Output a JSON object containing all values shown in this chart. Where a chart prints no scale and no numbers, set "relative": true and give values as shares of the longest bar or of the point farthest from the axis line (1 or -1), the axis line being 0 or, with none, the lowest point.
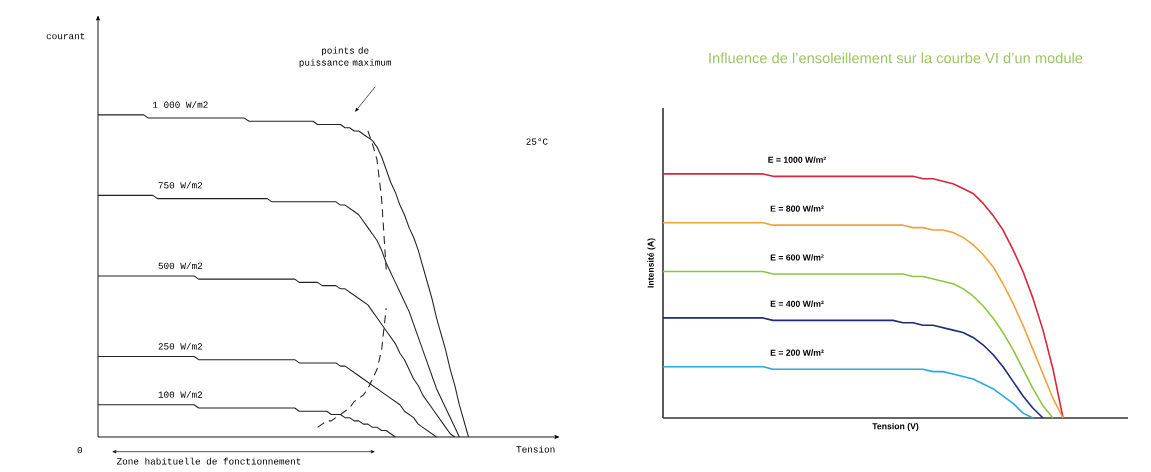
{
  "chart_data": [
    {
      "type": "line",
      "relative": true,
      "xlabel": "Tension",
      "ylabel": "courant",
      "annotations": [
        "points de puissance maximum",
        "25°C",
        "0",
        "Zone habituelle de fonctionnement"
      ],
      "categories": [
        null,
        null,
        null,
        null,
        null,
        null,
        null,
        null,
        null,
        null,
        null,
        null,
        null,
        null,
        null,
        null,
        null,
        null,
        null,
        null,
        null,
        null,
        null,
        null,
        null,
        null,
        null,
        null,
        null,
        null,
        null,
        null,
        null,
        null,
        null,
        null,
        null,
        null,
        null,
        null,
        null,
        null,
        null,
        null,
        null,
        null,
        null,
        null,
        null,
        null,
        null,
        null,
        null,
        null,
        null,
        null,
        null,
        null,
        null,
        null,
        null,
        null,
        null,
        null,
        null,
        null,
        null,
        null,
        null,
        null,
        null,
        null,
        null,
        null,
        null,
        null,
        null,
        null,
        null,
        null,
        null,
        null,
        null,
        null,
        null,
        null,
        null,
        null,
        null,
        null,
        null,
        null,
        null,
        null,
        null,
        null,
        null,
        null,
        null,
        null,
        null
      ],
      "series": [
        {
          "name": "1 000 W/m2",
          "color": "#222222",
          "values": [
            1,
            1,
            1,
            1,
            1,
            1,
            1,
            1,
            1,
            1,
            1,
            0.99,
            0.99,
            0.99,
            0.99,
            0.99,
            0.99,
            0.99,
            0.99,
            0.99,
            0.99,
            0.99,
            0.99,
            0.99,
            0.99,
            0.99,
            0.99,
            0.99,
            0.99,
            0.99,
            0.99,
            0.99,
            0.99,
            0.98,
            0.98,
            0.98,
            0.98,
            0.98,
            0.98,
            0.98,
            0.98,
            0.98,
            0.98,
            0.98,
            0.98,
            0.98,
            0.98,
            0.98,
            0.97,
            0.97,
            0.97,
            0.97,
            0.97,
            0.97,
            0.96,
            0.96,
            0.95,
            0.95,
            0.94,
            0.93,
            0.92,
            0.9,
            0.87,
            0.83,
            0.79,
            0.76,
            0.72,
            0.69,
            0.65,
            0.62,
            0.58,
            0.53,
            0.48,
            0.43,
            0.37,
            0.32,
            0.27,
            0.21,
            0.16,
            0.1,
            0.05,
            0,
            null,
            null,
            null,
            null,
            null,
            null,
            null,
            null,
            null,
            null,
            null,
            null,
            null,
            null,
            null,
            null,
            null,
            null,
            null
          ]
        },
        {
          "name": "750 W/m2",
          "color": "#222222",
          "values": [
            0.75,
            0.75,
            0.75,
            0.75,
            0.75,
            0.75,
            0.75,
            0.75,
            0.75,
            0.75,
            0.75,
            0.75,
            0.75,
            0.74,
            0.74,
            0.74,
            0.74,
            0.74,
            0.74,
            0.74,
            0.74,
            0.74,
            0.74,
            0.74,
            0.74,
            0.74,
            0.74,
            0.74,
            0.74,
            0.74,
            0.74,
            0.74,
            0.74,
            0.74,
            0.74,
            0.74,
            0.74,
            0.74,
            0.73,
            0.73,
            0.73,
            0.73,
            0.73,
            0.73,
            0.73,
            0.73,
            0.73,
            0.73,
            0.73,
            0.73,
            0.73,
            0.73,
            0.73,
            0.72,
            0.72,
            0.71,
            0.7,
            0.69,
            0.67,
            0.65,
            0.63,
            0.61,
            0.58,
            0.54,
            0.51,
            0.48,
            0.45,
            0.42,
            0.39,
            0.35,
            0.31,
            0.27,
            0.23,
            0.19,
            0.15,
            0.12,
            0.09,
            0.06,
            0.03,
            0,
            null,
            null,
            null,
            null,
            null,
            null,
            null,
            null,
            null,
            null,
            null,
            null,
            null,
            null,
            null,
            null,
            null,
            null,
            null,
            null,
            null
          ]
        },
        {
          "name": "500 W/m2",
          "color": "#222222",
          "values": [
            0.5,
            0.5,
            0.5,
            0.5,
            0.5,
            0.5,
            0.5,
            0.5,
            0.5,
            0.5,
            0.5,
            0.5,
            0.5,
            0.5,
            0.5,
            0.5,
            0.5,
            0.5,
            0.5,
            0.5,
            0.5,
            0.5,
            0.49,
            0.49,
            0.49,
            0.49,
            0.49,
            0.49,
            0.49,
            0.49,
            0.49,
            0.49,
            0.49,
            0.49,
            0.49,
            0.49,
            0.49,
            0.49,
            0.49,
            0.49,
            0.49,
            0.49,
            0.49,
            0.49,
            0.48,
            0.48,
            0.48,
            0.48,
            0.48,
            0.47,
            0.47,
            0.47,
            0.47,
            0.46,
            0.46,
            0.45,
            0.44,
            0.43,
            0.42,
            0.41,
            0.39,
            0.37,
            0.35,
            0.33,
            0.31,
            0.29,
            0.26,
            0.24,
            0.21,
            0.18,
            0.16,
            0.13,
            0.11,
            0.09,
            0.07,
            0.05,
            0.03,
            0.01,
            0,
            null,
            null,
            null,
            null,
            null,
            null,
            null,
            null,
            null,
            null,
            null,
            null,
            null,
            null,
            null,
            null,
            null,
            null,
            null,
            null,
            null,
            null
          ]
        },
        {
          "name": "250 W/m2",
          "color": "#222222",
          "values": [
            0.25,
            0.25,
            0.25,
            0.25,
            0.25,
            0.25,
            0.25,
            0.25,
            0.25,
            0.25,
            0.25,
            0.25,
            0.25,
            0.25,
            0.25,
            0.25,
            0.25,
            0.25,
            0.25,
            0.25,
            0.25,
            0.25,
            0.24,
            0.24,
            0.24,
            0.24,
            0.24,
            0.24,
            0.24,
            0.24,
            0.24,
            0.24,
            0.24,
            0.24,
            0.24,
            0.24,
            0.24,
            0.24,
            0.24,
            0.24,
            0.24,
            0.24,
            0.24,
            0.24,
            0.23,
            0.23,
            0.23,
            0.23,
            0.23,
            0.23,
            0.23,
            0.23,
            0.23,
            0.22,
            0.22,
            0.21,
            0.2,
            0.19,
            0.18,
            0.17,
            0.16,
            0.15,
            0.14,
            0.13,
            0.12,
            0.11,
            0.1,
            0.08,
            0.07,
            0.06,
            0.04,
            0.03,
            0.02,
            0.01,
            0,
            null,
            null,
            null,
            null,
            null,
            null,
            null,
            null,
            null,
            null,
            null,
            null,
            null,
            null,
            null,
            null,
            null,
            null,
            null,
            null,
            null,
            null,
            null,
            null,
            null,
            null
          ]
        },
        {
          "name": "100 W/m2",
          "color": "#222222",
          "values": [
            0.1,
            0.1,
            0.1,
            0.1,
            0.1,
            0.1,
            0.1,
            0.1,
            0.1,
            0.1,
            0.1,
            0.1,
            0.1,
            0.1,
            0.1,
            0.1,
            0.1,
            0.1,
            0.1,
            0.1,
            0.1,
            0.1,
            0.09,
            0.09,
            0.09,
            0.09,
            0.09,
            0.09,
            0.09,
            0.09,
            0.09,
            0.09,
            0.09,
            0.09,
            0.09,
            0.09,
            0.09,
            0.09,
            0.09,
            0.09,
            0.09,
            0.09,
            0.09,
            0.09,
            0.08,
            0.08,
            0.08,
            0.08,
            0.08,
            0.08,
            0.08,
            0.07,
            0.07,
            0.07,
            0.06,
            0.06,
            0.05,
            0.05,
            0.04,
            0.04,
            0.03,
            0.03,
            0.02,
            0.02,
            0.01,
            0,
            null,
            null,
            null,
            null,
            null,
            null,
            null,
            null,
            null,
            null,
            null,
            null,
            null,
            null,
            null,
            null,
            null,
            null,
            null,
            null,
            null,
            null,
            null,
            null,
            null,
            null,
            null,
            null,
            null,
            null,
            null,
            null,
            null,
            null,
            null
          ]
        },
        {
          "color": "#222222",
          "line_style": "dashed",
          "values": [
            null,
            null,
            null,
            null,
            null,
            null,
            null,
            null,
            null,
            null,
            null,
            null,
            null,
            null,
            null,
            null,
            null,
            null,
            null,
            null,
            null,
            null,
            null,
            null,
            null,
            null,
            null,
            null,
            null,
            null,
            null,
            null,
            null,
            null,
            null,
            null,
            null,
            null,
            null,
            null,
            null,
            null,
            null,
            null,
            null,
            null,
            null,
            null,
            0.03,
            0.04,
            0.05,
            0.05,
            0.06,
            0.07,
            0.08,
            0.09,
            0.11,
            0.12,
            0.13,
            0.15,
            0.18,
            0.21,
            0.27,
            0.4,
            null,
            null,
            null,
            null,
            null,
            null,
            null,
            null,
            null,
            null,
            null,
            null,
            null,
            null,
            null,
            null,
            null,
            null,
            null,
            null,
            null,
            null,
            null,
            null,
            null,
            null,
            null,
            null,
            null,
            null,
            null,
            null,
            null,
            null,
            null,
            null,
            null
          ]
        },
        {
          "color": "#222222",
          "line_style": "dashed",
          "values": [
            null,
            null,
            null,
            null,
            null,
            null,
            null,
            null,
            null,
            null,
            null,
            null,
            null,
            null,
            null,
            null,
            null,
            null,
            null,
            null,
            null,
            null,
            null,
            null,
            null,
            null,
            null,
            null,
            null,
            null,
            null,
            null,
            null,
            null,
            null,
            null,
            null,
            null,
            null,
            null,
            null,
            null,
            null,
            null,
            null,
            null,
            null,
            null,
            null,
            null,
            null,
            null,
            null,
            null,
            null,
            null,
            null,
            null,
            null,
            0.95,
            0.91,
            0.86,
            0.74,
            0.52,
            null,
            null,
            null,
            null,
            null,
            null,
            null,
            null,
            null,
            null,
            null,
            null,
            null,
            null,
            null,
            null,
            null,
            null,
            null,
            null,
            null,
            null,
            null,
            null,
            null,
            null,
            null,
            null,
            null,
            null,
            null,
            null,
            null,
            null,
            null,
            null,
            null
          ]
        }
      ]
    },
    {
      "type": "line",
      "relative": true,
      "title": "Influence de l’ensoleillement sur la courbe VI d’un module",
      "xlabel": "Tension  (V)",
      "ylabel": "Intensité (A)",
      "categories": [
        null,
        null,
        null,
        null,
        null,
        null,
        null,
        null,
        null,
        null,
        null,
        null,
        null,
        null,
        null,
        null,
        null,
        null,
        null,
        null,
        null,
        null,
        null,
        null,
        null,
        null,
        null,
        null,
        null,
        null,
        null,
        null,
        null,
        null,
        null,
        null,
        null,
        null,
        null,
        null,
        null,
        null,
        null,
        null,
        null,
        null,
        null
      ],
      "series": [
        {
          "name": "E = 1000 W/m²",
          "color": "#d7263d",
          "values": [
            1,
            1,
            1,
            1,
            1,
            1,
            1,
            1,
            1,
            1,
            1,
            0.99,
            0.99,
            0.99,
            0.99,
            0.99,
            0.99,
            0.99,
            0.99,
            0.99,
            0.99,
            0.99,
            0.99,
            0.99,
            0.99,
            0.99,
            0.98,
            0.98,
            0.97,
            0.96,
            0.94,
            0.92,
            0.88,
            0.83,
            0.77,
            0.69,
            0.6,
            0.49,
            0.36,
            0.2,
            0,
            null,
            null,
            null,
            null,
            null,
            null
          ]
        },
        {
          "name": "E = 800 W/m²",
          "color": "#eea23a",
          "values": [
            0.8,
            0.8,
            0.8,
            0.8,
            0.8,
            0.8,
            0.8,
            0.8,
            0.8,
            0.8,
            0.8,
            0.79,
            0.79,
            0.79,
            0.79,
            0.79,
            0.79,
            0.79,
            0.79,
            0.79,
            0.79,
            0.79,
            0.79,
            0.79,
            0.79,
            0.78,
            0.78,
            0.77,
            0.77,
            0.76,
            0.74,
            0.71,
            0.67,
            0.62,
            0.55,
            0.47,
            0.38,
            0.28,
            0.18,
            0.08,
            0,
            null,
            null,
            null,
            null,
            null,
            null
          ]
        },
        {
          "name": "E = 600 W/m²",
          "color": "#8cc63f",
          "values": [
            0.6,
            0.6,
            0.6,
            0.6,
            0.6,
            0.6,
            0.6,
            0.6,
            0.6,
            0.6,
            0.6,
            0.59,
            0.59,
            0.59,
            0.59,
            0.59,
            0.59,
            0.59,
            0.59,
            0.59,
            0.59,
            0.59,
            0.59,
            0.59,
            0.59,
            0.58,
            0.58,
            0.57,
            0.56,
            0.55,
            0.53,
            0.5,
            0.46,
            0.41,
            0.35,
            0.28,
            0.2,
            0.12,
            0.05,
            0,
            null,
            null,
            null,
            null,
            null,
            null,
            null
          ]
        },
        {
          "name": "E = 400 W/m²",
          "color": "#1f2a7a",
          "values": [
            0.41,
            0.41,
            0.41,
            0.41,
            0.41,
            0.41,
            0.41,
            0.41,
            0.41,
            0.41,
            0.41,
            0.4,
            0.4,
            0.4,
            0.4,
            0.4,
            0.4,
            0.4,
            0.4,
            0.4,
            0.4,
            0.4,
            0.4,
            0.4,
            0.39,
            0.39,
            0.38,
            0.38,
            0.37,
            0.36,
            0.35,
            0.33,
            0.3,
            0.26,
            0.21,
            0.15,
            0.09,
            0.04,
            0,
            null,
            null,
            null,
            null,
            null,
            null,
            null,
            null
          ]
        },
        {
          "name": "E = 200 W/m²",
          "color": "#29a8e0",
          "values": [
            0.21,
            0.21,
            0.21,
            0.21,
            0.21,
            0.21,
            0.21,
            0.21,
            0.21,
            0.21,
            0.21,
            0.2,
            0.2,
            0.2,
            0.2,
            0.2,
            0.2,
            0.2,
            0.2,
            0.2,
            0.2,
            0.2,
            0.2,
            0.2,
            0.2,
            0.2,
            0.2,
            0.19,
            0.19,
            0.18,
            0.17,
            0.16,
            0.14,
            0.12,
            0.09,
            0.06,
            0.02,
            0,
            null,
            null,
            null,
            null,
            null,
            null,
            null,
            null,
            null
          ]
        }
      ]
    }
  ]
}
